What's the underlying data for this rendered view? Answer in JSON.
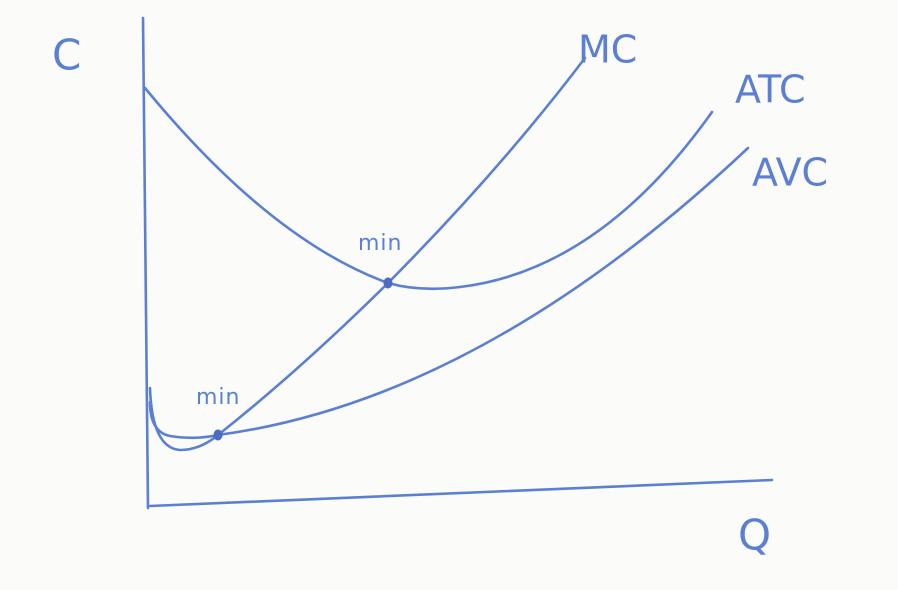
{
  "axes": {
    "y_label": "C",
    "x_label": "Q"
  },
  "curves": [
    {
      "label": "MC"
    },
    {
      "label": "ATC"
    },
    {
      "label": "AVC"
    }
  ],
  "annotations": [
    "min",
    "min"
  ]
}
